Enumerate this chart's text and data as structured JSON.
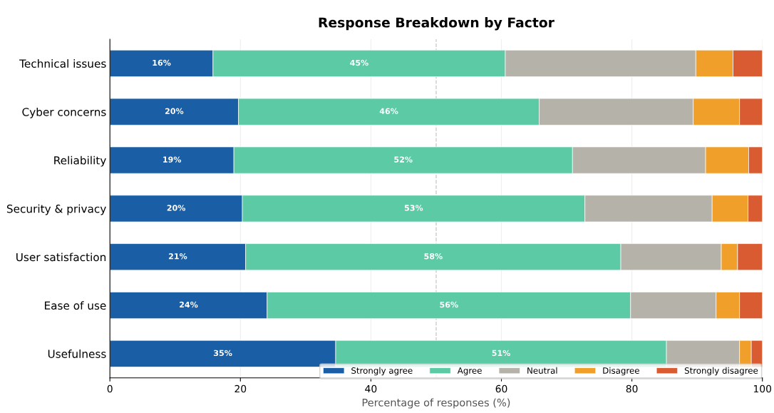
{
  "chart_data": {
    "type": "bar",
    "orientation": "horizontal",
    "stacked": true,
    "title": "Response Breakdown by Factor",
    "xlabel": "Percentage of responses (%)",
    "categories": [
      "Technical issues",
      "Cyber concerns",
      "Reliability",
      "Security & privacy",
      "User satisfaction",
      "Ease of use",
      "Usefulness"
    ],
    "series": [
      {
        "name": "Strongly agree",
        "color": "#1a5fa6",
        "values": [
          15.8,
          19.7,
          19.0,
          20.3,
          20.8,
          24.1,
          34.6
        ],
        "value_labels": [
          "16%",
          "20%",
          "19%",
          "20%",
          "21%",
          "24%",
          "35%"
        ]
      },
      {
        "name": "Agree",
        "color": "#5ccaa5",
        "values": [
          44.8,
          46.1,
          51.9,
          52.5,
          57.5,
          55.7,
          50.7
        ],
        "value_labels": [
          "45%",
          "46%",
          "52%",
          "53%",
          "58%",
          "56%",
          "51%"
        ]
      },
      {
        "name": "Neutral",
        "color": "#b5b2aa",
        "values": [
          29.2,
          23.6,
          20.4,
          19.5,
          15.4,
          13.1,
          11.2
        ]
      },
      {
        "name": "Disagree",
        "color": "#ef9f2a",
        "values": [
          5.7,
          7.1,
          6.6,
          5.5,
          2.5,
          3.6,
          1.8
        ]
      },
      {
        "name": "Strongly disagree",
        "color": "#d95b32",
        "values": [
          4.5,
          3.5,
          2.1,
          2.2,
          3.8,
          3.5,
          1.7
        ]
      }
    ],
    "xlim": [
      0,
      100
    ],
    "xticks": [
      0,
      20,
      40,
      60,
      80,
      100
    ],
    "ref_lines": [
      {
        "axis": "x",
        "value": 50,
        "color": "#cccccc",
        "line_style": "dashed"
      }
    ],
    "grid": "x",
    "legend": "bottom right"
  }
}
